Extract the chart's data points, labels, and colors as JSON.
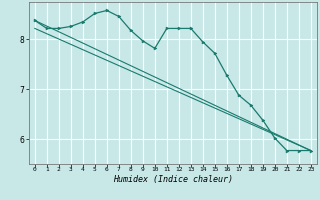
{
  "xlabel": "Humidex (Indice chaleur)",
  "bg_color": "#c8e8e8",
  "grid_color": "#ffffff",
  "line_color": "#1a7a6e",
  "xlim": [
    -0.5,
    23.5
  ],
  "ylim": [
    5.5,
    8.75
  ],
  "yticks": [
    6,
    7,
    8
  ],
  "xticks": [
    0,
    1,
    2,
    3,
    4,
    5,
    6,
    7,
    8,
    9,
    10,
    11,
    12,
    13,
    14,
    15,
    16,
    17,
    18,
    19,
    20,
    21,
    22,
    23
  ],
  "curve1_x": [
    0,
    1,
    2,
    3,
    4,
    5,
    6,
    7,
    8,
    9,
    10,
    11,
    12,
    13,
    14,
    15,
    16,
    17,
    18,
    19,
    20,
    21,
    22,
    23
  ],
  "curve1_y": [
    8.38,
    8.22,
    8.22,
    8.26,
    8.35,
    8.52,
    8.58,
    8.46,
    8.18,
    7.97,
    7.82,
    8.22,
    8.22,
    8.22,
    7.95,
    7.72,
    7.28,
    6.88,
    6.68,
    6.38,
    6.02,
    5.77,
    5.77,
    5.77
  ],
  "line1_x": [
    0,
    23
  ],
  "line1_y": [
    8.38,
    5.77
  ],
  "line2_x": [
    0,
    23
  ],
  "line2_y": [
    8.22,
    5.77
  ]
}
